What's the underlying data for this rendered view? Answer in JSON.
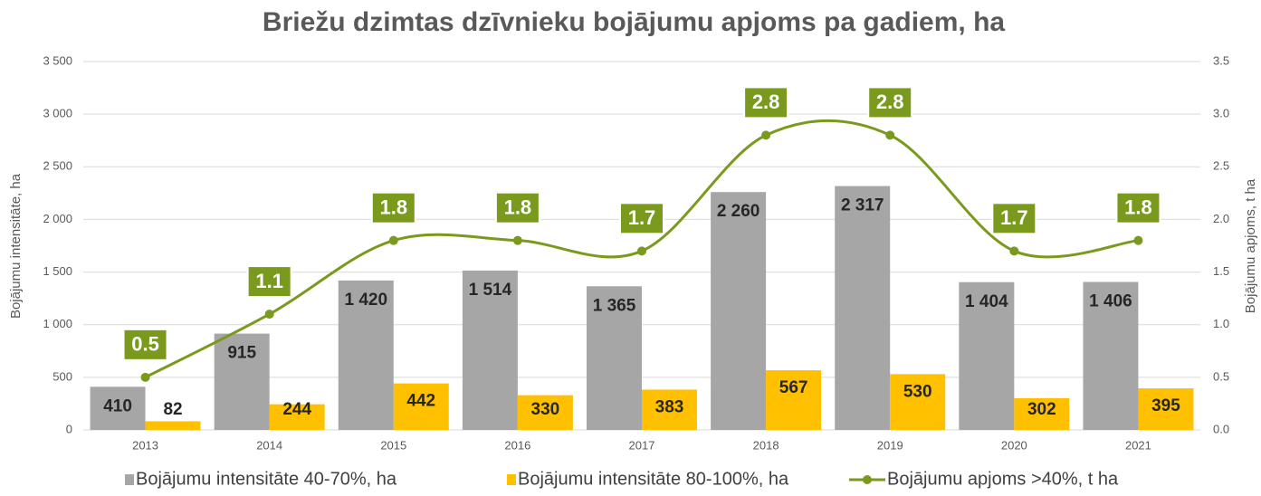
{
  "chart_data": {
    "type": "bar-line",
    "title": "Briežu dzimtas dzīvnieku bojājumu apjoms pa gadiem, ha",
    "ylabel": "Bojājumu intensitāte, ha",
    "y2label": "Bojājumu apjoms, t ha",
    "categories": [
      "2013",
      "2014",
      "2015",
      "2016",
      "2017",
      "2018",
      "2019",
      "2020",
      "2021"
    ],
    "ylim": [
      0,
      3500
    ],
    "yticks": [
      0,
      500,
      {
        "value": 1000,
        "label": "1 000"
      },
      {
        "value": 1500,
        "label": "1 500"
      },
      {
        "value": 2000,
        "label": "2 000"
      },
      {
        "value": 2500,
        "label": "2 500"
      },
      {
        "value": 3000,
        "label": "3 000"
      },
      {
        "value": 3500,
        "label": "3 500"
      }
    ],
    "y2lim": [
      0,
      3.5
    ],
    "y2ticks": [
      {
        "value": 0,
        "label": "0.0"
      },
      0.5,
      {
        "value": 1,
        "label": "1.0"
      },
      1.5,
      {
        "value": 2,
        "label": "2.0"
      },
      2.5,
      {
        "value": 3,
        "label": "3.0"
      },
      3.5
    ],
    "grid": true,
    "series": [
      {
        "name": "Bojājumu intensitāte 40-70%, ha",
        "color": "#a6a6a6",
        "type": "bar",
        "values": [
          410,
          915,
          1420,
          1514,
          1365,
          2260,
          2317,
          1404,
          1406
        ],
        "value_labels": [
          "410",
          "915",
          "1 420",
          "1 514",
          "1 365",
          "2 260",
          "2 317",
          "1 404",
          "1 406"
        ]
      },
      {
        "name": "Bojājumu intensitāte 80-100%, ha",
        "color": "#ffc000",
        "type": "bar",
        "values": [
          82,
          244,
          442,
          330,
          383,
          567,
          530,
          302,
          395
        ]
      },
      {
        "name": "Bojājumu apjoms >40%, t ha",
        "color": "#7a9a1e",
        "type": "line",
        "axis": "y2",
        "values": [
          0.5,
          1.1,
          1.8,
          1.8,
          1.7,
          2.8,
          2.8,
          1.7,
          1.8
        ]
      }
    ],
    "legend": "bottom"
  }
}
